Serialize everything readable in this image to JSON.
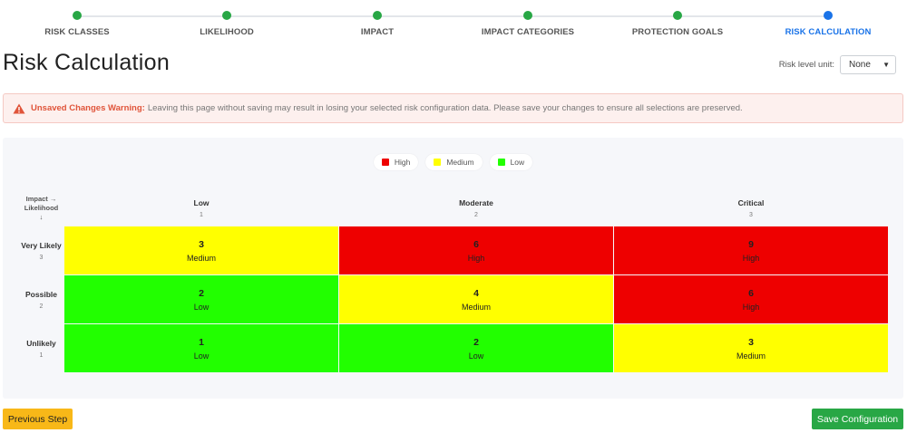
{
  "stepper": {
    "steps": [
      {
        "label": "RISK CLASSES",
        "state": "done"
      },
      {
        "label": "LIKELIHOOD",
        "state": "done"
      },
      {
        "label": "IMPACT",
        "state": "done"
      },
      {
        "label": "IMPACT CATEGORIES",
        "state": "done"
      },
      {
        "label": "PROTECTION GOALS",
        "state": "done"
      },
      {
        "label": "RISK CALCULATION",
        "state": "active"
      }
    ]
  },
  "header": {
    "title": "Risk Calculation",
    "unit_label": "Risk level unit:",
    "unit_value": "None"
  },
  "warning": {
    "icon": "warning-triangle-icon",
    "title": "Unsaved Changes Warning:",
    "message": "Leaving this page without saving may result in losing your selected risk configuration data. Please save your changes to ensure all selections are preserved."
  },
  "legend": [
    {
      "label": "High",
      "color": "#ee0000"
    },
    {
      "label": "Medium",
      "color": "#ffff00"
    },
    {
      "label": "Low",
      "color": "#22ff00"
    }
  ],
  "matrix": {
    "corner_line1": "Impact →",
    "corner_line2": "Likelihood",
    "corner_line3": "↓",
    "columns": [
      {
        "label": "Low",
        "value": "1"
      },
      {
        "label": "Moderate",
        "value": "2"
      },
      {
        "label": "Critical",
        "value": "3"
      }
    ],
    "rows": [
      {
        "label": "Very Likely",
        "value": "3",
        "cells": [
          {
            "score": "3",
            "level": "Medium",
            "color": "#ffff00"
          },
          {
            "score": "6",
            "level": "High",
            "color": "#ee0000"
          },
          {
            "score": "9",
            "level": "High",
            "color": "#ee0000"
          }
        ]
      },
      {
        "label": "Possible",
        "value": "2",
        "cells": [
          {
            "score": "2",
            "level": "Low",
            "color": "#22ff00"
          },
          {
            "score": "4",
            "level": "Medium",
            "color": "#ffff00"
          },
          {
            "score": "6",
            "level": "High",
            "color": "#ee0000"
          }
        ]
      },
      {
        "label": "Unlikely",
        "value": "1",
        "cells": [
          {
            "score": "1",
            "level": "Low",
            "color": "#22ff00"
          },
          {
            "score": "2",
            "level": "Low",
            "color": "#22ff00"
          },
          {
            "score": "3",
            "level": "Medium",
            "color": "#ffff00"
          }
        ]
      }
    ]
  },
  "footer": {
    "prev_label": "Previous Step",
    "save_label": "Save Configuration"
  }
}
